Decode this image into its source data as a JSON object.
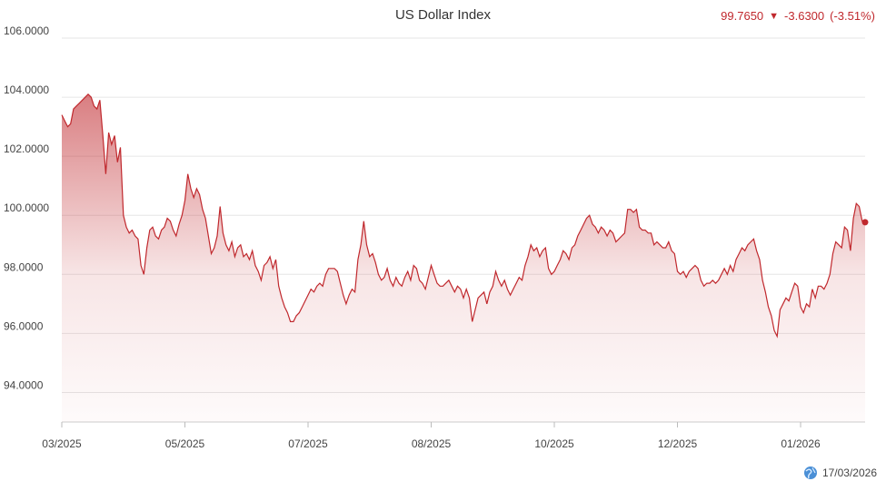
{
  "title": "US Dollar Index",
  "quote": {
    "last": "99.7650",
    "change": "-3.6300",
    "change_pct": "(-3.51%)",
    "direction_icon": "down-triangle-icon"
  },
  "as_of_date": "17/03/2026",
  "colors": {
    "line": "#c0282d",
    "fill_top": "#c0282d",
    "grid": "#e6e6e6"
  },
  "chart_data": {
    "type": "area",
    "title": "US Dollar Index",
    "xlabel": "",
    "ylabel": "",
    "ylim": [
      93,
      106
    ],
    "y_ticks": [
      "106.0000",
      "104.0000",
      "102.0000",
      "100.0000",
      "98.0000",
      "96.0000",
      "94.0000"
    ],
    "y_tick_values": [
      106,
      104,
      102,
      100,
      98,
      96,
      94
    ],
    "x_ticks": [
      "03/2025",
      "05/2025",
      "07/2025",
      "08/2025",
      "10/2025",
      "12/2025",
      "01/2026"
    ],
    "x_tick_index": [
      0,
      42,
      84,
      126,
      168,
      210,
      252
    ],
    "grid": true,
    "legend": "none",
    "series": [
      {
        "values": [
          103.4,
          103.2,
          103.0,
          103.1,
          103.6,
          103.7,
          103.8,
          103.9,
          104.0,
          104.1,
          104.0,
          103.7,
          103.6,
          103.9,
          102.7,
          101.4,
          102.8,
          102.4,
          102.7,
          101.8,
          102.3,
          100.0,
          99.6,
          99.4,
          99.5,
          99.3,
          99.2,
          98.3,
          98.0,
          98.9,
          99.5,
          99.6,
          99.3,
          99.2,
          99.5,
          99.6,
          99.9,
          99.8,
          99.5,
          99.3,
          99.7,
          100.0,
          100.5,
          101.4,
          100.9,
          100.6,
          100.9,
          100.7,
          100.2,
          99.9,
          99.3,
          98.7,
          98.9,
          99.3,
          100.3,
          99.4,
          99.0,
          98.8,
          99.1,
          98.6,
          98.9,
          99.0,
          98.6,
          98.7,
          98.5,
          98.8,
          98.3,
          98.1,
          97.8,
          98.3,
          98.4,
          98.6,
          98.2,
          98.5,
          97.6,
          97.2,
          96.9,
          96.7,
          96.4,
          96.4,
          96.6,
          96.7,
          96.9,
          97.1,
          97.3,
          97.5,
          97.4,
          97.6,
          97.7,
          97.6,
          98.0,
          98.2,
          98.2,
          98.2,
          98.1,
          97.7,
          97.3,
          97.0,
          97.3,
          97.5,
          97.4,
          98.5,
          99.0,
          99.8,
          99.0,
          98.6,
          98.7,
          98.4,
          98.0,
          97.8,
          97.9,
          98.2,
          97.8,
          97.6,
          97.9,
          97.7,
          97.6,
          97.9,
          98.1,
          97.8,
          98.3,
          98.2,
          97.8,
          97.7,
          97.5,
          97.9,
          98.3,
          98.0,
          97.7,
          97.6,
          97.6,
          97.7,
          97.8,
          97.6,
          97.4,
          97.6,
          97.5,
          97.2,
          97.5,
          97.2,
          96.4,
          96.8,
          97.2,
          97.3,
          97.4,
          97.0,
          97.4,
          97.6,
          98.1,
          97.8,
          97.6,
          97.8,
          97.5,
          97.3,
          97.5,
          97.7,
          97.9,
          97.8,
          98.3,
          98.6,
          99.0,
          98.8,
          98.9,
          98.6,
          98.8,
          98.9,
          98.2,
          98.0,
          98.1,
          98.3,
          98.5,
          98.8,
          98.7,
          98.5,
          98.9,
          99.0,
          99.3,
          99.5,
          99.7,
          99.9,
          100.0,
          99.7,
          99.6,
          99.4,
          99.6,
          99.5,
          99.3,
          99.5,
          99.4,
          99.1,
          99.2,
          99.3,
          99.4,
          100.2,
          100.2,
          100.1,
          100.2,
          99.6,
          99.5,
          99.5,
          99.4,
          99.4,
          99.0,
          99.1,
          99.0,
          98.9,
          98.9,
          99.1,
          98.8,
          98.7,
          98.1,
          98.0,
          98.1,
          97.9,
          98.1,
          98.2,
          98.3,
          98.2,
          97.8,
          97.6,
          97.7,
          97.7,
          97.8,
          97.7,
          97.8,
          98.0,
          98.2,
          98.0,
          98.3,
          98.1,
          98.5,
          98.7,
          98.9,
          98.8,
          99.0,
          99.1,
          99.2,
          98.8,
          98.5,
          97.8,
          97.4,
          96.9,
          96.6,
          96.1,
          95.9,
          96.8,
          97.0,
          97.2,
          97.1,
          97.4,
          97.7,
          97.6,
          96.9,
          96.7,
          97.0,
          96.9,
          97.5,
          97.2,
          97.6,
          97.6,
          97.5,
          97.7,
          98.0,
          98.7,
          99.1,
          99.0,
          98.9,
          99.6,
          99.5,
          98.8,
          99.9,
          100.4,
          100.3,
          99.8,
          99.8
        ]
      }
    ],
    "last_point": 99.765
  }
}
